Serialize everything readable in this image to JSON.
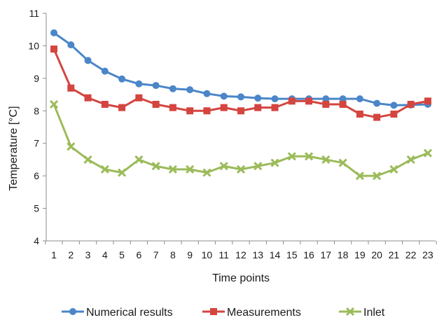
{
  "chart_data": {
    "type": "line",
    "title": "",
    "xlabel": "Time points",
    "ylabel": "Temperature [°C]",
    "categories": [
      "1",
      "2",
      "3",
      "4",
      "5",
      "6",
      "7",
      "8",
      "9",
      "10",
      "11",
      "12",
      "13",
      "14",
      "15",
      "16",
      "17",
      "18",
      "19",
      "20",
      "21",
      "22",
      "23"
    ],
    "ylim": [
      4,
      11
    ],
    "yticks": [
      4,
      5,
      6,
      7,
      8,
      9,
      10,
      11
    ],
    "grid": false,
    "legend_position": "bottom",
    "series": [
      {
        "name": "Numerical results",
        "color": "#4a86c8",
        "marker": "circle",
        "values": [
          10.4,
          10.03,
          9.55,
          9.22,
          8.98,
          8.83,
          8.78,
          8.68,
          8.65,
          8.53,
          8.45,
          8.43,
          8.39,
          8.37,
          8.37,
          8.37,
          8.37,
          8.37,
          8.37,
          8.23,
          8.17,
          8.18,
          8.2
        ]
      },
      {
        "name": "Measurements",
        "color": "#d4453f",
        "marker": "square",
        "values": [
          9.9,
          8.7,
          8.4,
          8.2,
          8.1,
          8.4,
          8.2,
          8.1,
          8.0,
          8.0,
          8.1,
          8.0,
          8.1,
          8.1,
          8.3,
          8.3,
          8.2,
          8.2,
          7.9,
          7.8,
          7.9,
          8.2,
          8.3
        ]
      },
      {
        "name": "Inlet",
        "color": "#9bbb59",
        "marker": "x",
        "values": [
          8.2,
          6.9,
          6.5,
          6.2,
          6.1,
          6.5,
          6.3,
          6.2,
          6.2,
          6.1,
          6.3,
          6.2,
          6.3,
          6.4,
          6.6,
          6.6,
          6.5,
          6.4,
          6.0,
          6.0,
          6.2,
          6.5,
          6.7
        ]
      }
    ]
  }
}
